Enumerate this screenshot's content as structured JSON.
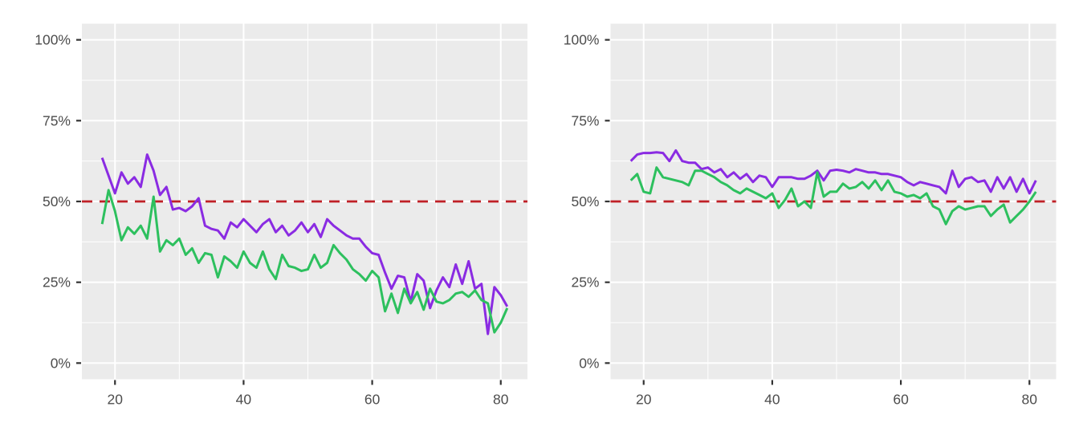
{
  "figure": {
    "background": "#ffffff",
    "panel_background": "#ebebeb",
    "grid_color": "#ffffff",
    "axis_text_color": "#4d4d4d",
    "tick_mark_color": "#333333",
    "legend": "none",
    "title": ""
  },
  "chart_data": [
    {
      "panel": "left",
      "type": "line",
      "x": [
        18,
        19,
        20,
        21,
        22,
        23,
        24,
        25,
        26,
        27,
        28,
        29,
        30,
        31,
        32,
        33,
        34,
        35,
        36,
        37,
        38,
        39,
        40,
        41,
        42,
        43,
        44,
        45,
        46,
        47,
        48,
        49,
        50,
        51,
        52,
        53,
        54,
        55,
        56,
        57,
        58,
        59,
        60,
        61,
        62,
        63,
        64,
        65,
        66,
        67,
        68,
        69,
        70,
        71,
        72,
        73,
        74,
        75,
        76,
        77,
        78,
        79,
        80,
        81
      ],
      "series": [
        {
          "name": "purple-series",
          "color": "#8a2be2",
          "values": [
            63.5,
            58,
            52.5,
            59,
            55.5,
            57.5,
            54.5,
            64.5,
            59.5,
            52,
            54.5,
            47.5,
            48,
            47,
            48.5,
            51,
            42.5,
            41.5,
            41,
            38.5,
            43.5,
            42,
            44.5,
            42.5,
            40.5,
            43,
            44.5,
            40.5,
            42.5,
            39.5,
            41,
            43.5,
            40.5,
            43,
            39,
            44.5,
            42.5,
            41,
            39.5,
            38.5,
            38.5,
            36,
            34,
            33.5,
            28,
            23,
            27,
            26.5,
            19,
            27.5,
            25.5,
            17,
            22.5,
            26.5,
            23.5,
            30.5,
            24.5,
            31.5,
            23,
            24.5,
            9,
            23.5,
            21,
            17.5
          ]
        },
        {
          "name": "green-series",
          "color": "#2dc05e",
          "values": [
            43,
            53.5,
            47,
            38,
            42,
            40,
            42.5,
            38.5,
            51.5,
            34.5,
            38,
            36.5,
            38.5,
            33.5,
            35.5,
            31,
            34,
            33.5,
            26.5,
            33,
            31.5,
            29.5,
            34.5,
            31,
            29.5,
            34.5,
            29,
            26,
            33.5,
            30,
            29.5,
            28.5,
            29,
            33.5,
            29.5,
            31,
            36.5,
            34,
            32,
            29,
            27.5,
            25.5,
            28.5,
            26.5,
            16,
            21.5,
            15.5,
            23,
            18.5,
            22,
            16.5,
            23,
            19,
            18.5,
            19.5,
            21.5,
            22,
            20.5,
            22.5,
            19.5,
            18.5,
            9.5,
            12.5,
            17
          ]
        }
      ],
      "reference_line": {
        "y": 50,
        "color": "#c02026",
        "style": "dashed"
      },
      "x_ticks": {
        "values": [
          20,
          40,
          60,
          80
        ],
        "labels": [
          "20",
          "40",
          "60",
          "80"
        ]
      },
      "y_ticks": {
        "values": [
          0,
          25,
          50,
          75,
          100
        ],
        "labels": [
          "0%",
          "25%",
          "50%",
          "75%",
          "100%"
        ]
      },
      "x_minor": [
        30,
        50,
        70
      ],
      "y_minor": [
        12.5,
        37.5,
        62.5,
        87.5
      ],
      "xlim": [
        14.85,
        84.15
      ],
      "ylim": [
        -5,
        105
      ],
      "grid": true,
      "xlabel": "",
      "ylabel": ""
    },
    {
      "panel": "right",
      "type": "line",
      "x": [
        18,
        19,
        20,
        21,
        22,
        23,
        24,
        25,
        26,
        27,
        28,
        29,
        30,
        31,
        32,
        33,
        34,
        35,
        36,
        37,
        38,
        39,
        40,
        41,
        42,
        43,
        44,
        45,
        46,
        47,
        48,
        49,
        50,
        51,
        52,
        53,
        54,
        55,
        56,
        57,
        58,
        59,
        60,
        61,
        62,
        63,
        64,
        65,
        66,
        67,
        68,
        69,
        70,
        71,
        72,
        73,
        74,
        75,
        76,
        77,
        78,
        79,
        80,
        81
      ],
      "series": [
        {
          "name": "purple-series",
          "color": "#8a2be2",
          "values": [
            62.5,
            64.5,
            65,
            65,
            65.2,
            65,
            62.5,
            65.8,
            62.5,
            62,
            62,
            60,
            60.5,
            59,
            60,
            57.5,
            59,
            57,
            58.5,
            56,
            58,
            57.5,
            54.5,
            57.5,
            57.5,
            57.5,
            57,
            57,
            58,
            59.5,
            56.5,
            59.5,
            59.8,
            59.5,
            59,
            60,
            59.5,
            59,
            59,
            58.5,
            58.5,
            58,
            57.5,
            56,
            55,
            56,
            55.5,
            55,
            54.5,
            52.5,
            59.5,
            54.5,
            57,
            57.5,
            56,
            56.5,
            53,
            57.5,
            54,
            57.5,
            53,
            57,
            52.5,
            56.5
          ]
        },
        {
          "name": "green-series",
          "color": "#2dc05e",
          "values": [
            56.5,
            58.5,
            53,
            52.5,
            60.5,
            57.5,
            57,
            56.5,
            56,
            55,
            59.5,
            59.5,
            58.5,
            57.5,
            56,
            55,
            53.5,
            52.5,
            54,
            53,
            52,
            51,
            52.5,
            48,
            50.5,
            54,
            48.5,
            50,
            48,
            59,
            51.5,
            53,
            53,
            55.5,
            54,
            54.5,
            56,
            54,
            56.5,
            53.5,
            56.5,
            53,
            52.5,
            51.5,
            52,
            51,
            52.5,
            48.5,
            47.5,
            43,
            47,
            48.5,
            47.5,
            48,
            48.5,
            48.5,
            45.5,
            47.5,
            49,
            43.5,
            45.5,
            47.5,
            50,
            53
          ]
        }
      ],
      "reference_line": {
        "y": 50,
        "color": "#c02026",
        "style": "dashed"
      },
      "x_ticks": {
        "values": [
          20,
          40,
          60,
          80
        ],
        "labels": [
          "20",
          "40",
          "60",
          "80"
        ]
      },
      "y_ticks": {
        "values": [
          0,
          25,
          50,
          75,
          100
        ],
        "labels": [
          "0%",
          "25%",
          "50%",
          "75%",
          "100%"
        ]
      },
      "x_minor": [
        30,
        50,
        70
      ],
      "y_minor": [
        12.5,
        37.5,
        62.5,
        87.5
      ],
      "xlim": [
        14.85,
        84.15
      ],
      "ylim": [
        -5,
        105
      ],
      "grid": true,
      "xlabel": "",
      "ylabel": ""
    }
  ]
}
